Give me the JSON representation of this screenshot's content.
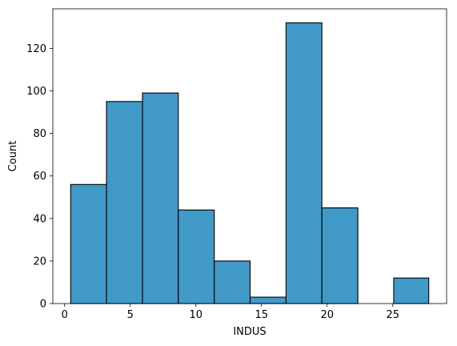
{
  "chart_data": {
    "type": "bar",
    "subtype": "histogram",
    "title": "",
    "xlabel": "INDUS",
    "ylabel": "Count",
    "bin_edges": [
      0.46,
      3.19,
      5.93,
      8.66,
      11.4,
      14.13,
      16.87,
      19.6,
      22.34,
      25.07,
      27.74
    ],
    "values": [
      56,
      95,
      99,
      44,
      20,
      3,
      132,
      45,
      0,
      12
    ],
    "xlim": [
      -0.9,
      29.1
    ],
    "ylim": [
      0,
      138.6
    ],
    "x_ticks": [
      0,
      5,
      10,
      15,
      20,
      25
    ],
    "y_ticks": [
      0,
      20,
      40,
      60,
      80,
      100,
      120
    ],
    "grid": false,
    "bar_color": "#4199c8",
    "edge_color": "#000000"
  }
}
